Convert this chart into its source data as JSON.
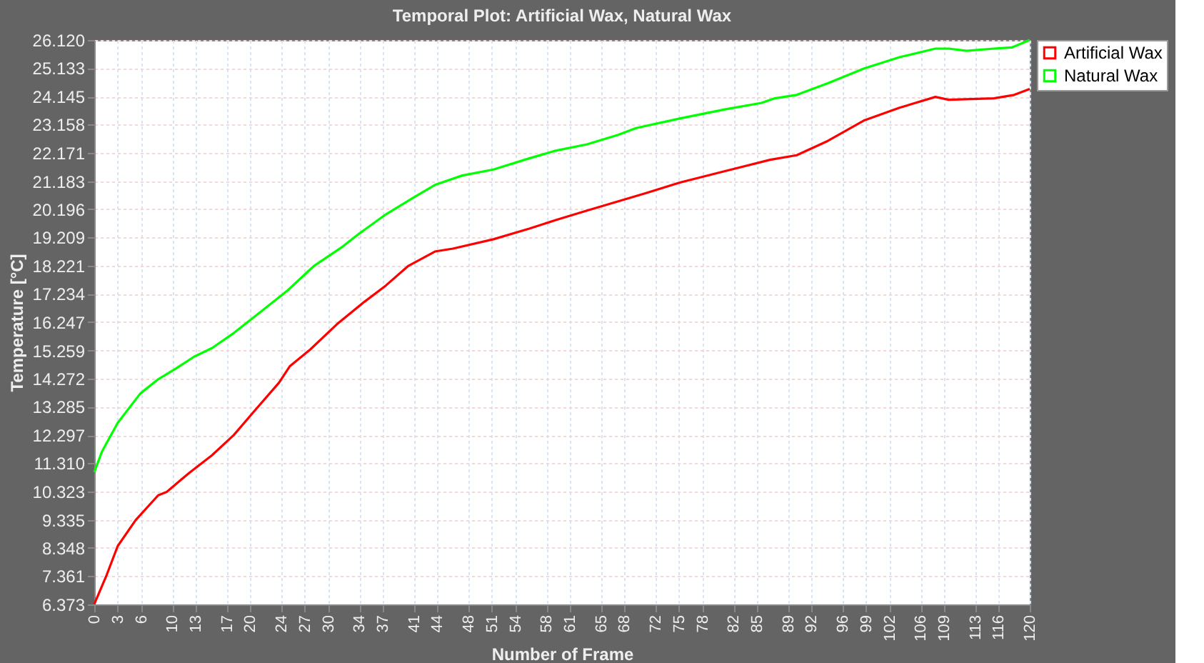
{
  "chart_data": {
    "type": "line",
    "title": "Temporal Plot: Artificial Wax, Natural Wax",
    "xlabel": "Number of Frame",
    "ylabel": "Temperature [°C]",
    "series": [
      {
        "name": "Artificial Wax",
        "color": "#ff0000",
        "x": [
          0,
          1.6,
          3.0,
          5.3,
          8.2,
          9.3,
          12.2,
          15.1,
          17.9,
          20.8,
          23.7,
          25.1,
          27.7,
          31.1,
          34.6,
          37.4,
          40.3,
          43.7,
          46.0,
          51.2,
          55.8,
          59.2,
          63.2,
          70.7,
          75.2,
          81.0,
          86.7,
          90.1,
          94.1,
          98.7,
          103.3,
          107.9,
          109.6,
          115.4,
          118.0,
          120
        ],
        "values": [
          6.38,
          7.41,
          8.41,
          9.32,
          10.19,
          10.31,
          10.98,
          11.59,
          12.3,
          13.22,
          14.13,
          14.71,
          15.29,
          16.17,
          16.95,
          17.53,
          18.22,
          18.72,
          18.82,
          19.15,
          19.52,
          19.82,
          20.15,
          20.76,
          21.14,
          21.54,
          21.93,
          22.09,
          22.59,
          23.3,
          23.75,
          24.13,
          24.03,
          24.08,
          24.2,
          24.41
        ]
      },
      {
        "name": "Natural Wax",
        "color": "#00ff00",
        "x": [
          0,
          1.0,
          3.0,
          5.9,
          8.2,
          10.5,
          12.8,
          15.1,
          17.9,
          21.4,
          24.8,
          28.2,
          31.7,
          34.0,
          37.4,
          40.9,
          43.7,
          47.2,
          51.2,
          55.8,
          59.2,
          63.2,
          67.2,
          69.5,
          75.2,
          81.0,
          85.6,
          87.3,
          90.1,
          94.1,
          98.7,
          103.3,
          107.9,
          109.6,
          111.9,
          115.4,
          117.7,
          120
        ],
        "values": [
          11.0,
          11.73,
          12.72,
          13.75,
          14.25,
          14.63,
          15.04,
          15.34,
          15.87,
          16.62,
          17.36,
          18.22,
          18.86,
          19.35,
          20.02,
          20.6,
          21.05,
          21.38,
          21.59,
          21.98,
          22.25,
          22.47,
          22.8,
          23.04,
          23.38,
          23.7,
          23.92,
          24.08,
          24.2,
          24.61,
          25.12,
          25.52,
          25.82,
          25.82,
          25.74,
          25.82,
          25.86,
          26.12
        ]
      }
    ],
    "xlim": [
      0,
      120
    ],
    "xticks": [
      0,
      3,
      6,
      10,
      13,
      17,
      20,
      24,
      27,
      30,
      34,
      37,
      41,
      44,
      48,
      51,
      54,
      58,
      61,
      65,
      68,
      72,
      75,
      78,
      82,
      85,
      89,
      92,
      96,
      99,
      102,
      106,
      109,
      113,
      116,
      120
    ],
    "ylim": [
      6.373,
      26.12
    ],
    "yticks": [
      6.373,
      7.361,
      8.348,
      9.335,
      10.323,
      {
        "value": 11.31,
        "label": "11.310"
      },
      12.297,
      13.285,
      14.272,
      15.259,
      16.247,
      17.234,
      18.221,
      19.209,
      20.196,
      21.183,
      22.171,
      23.158,
      24.145,
      25.133,
      {
        "value": 26.12,
        "label": "26.120"
      }
    ],
    "grid": true,
    "legend": "right",
    "marker": "none",
    "line_style": "solid"
  }
}
